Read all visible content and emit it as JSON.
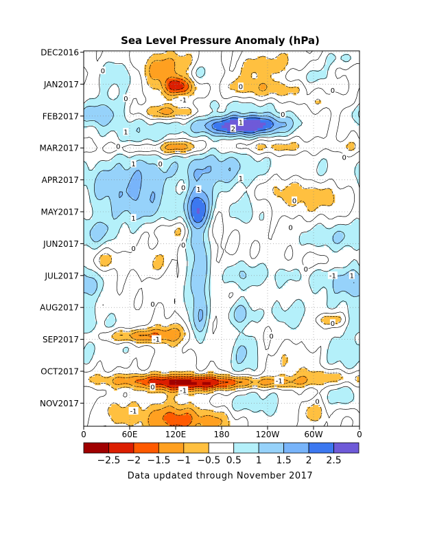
{
  "chart_data": {
    "type": "heatmap",
    "title": "Sea Level Pressure Anomaly (hPa)",
    "footer": "Data updated through November 2017",
    "y_tick_labels": [
      "DEC2016",
      "JAN2017",
      "FEB2017",
      "MAR2017",
      "APR2017",
      "MAY2017",
      "JUN2017",
      "JUL2017",
      "AUG2017",
      "SEP2017",
      "OCT2017",
      "NOV2017"
    ],
    "x_tick_labels": [
      "0",
      "60E",
      "120E",
      "180",
      "120W",
      "60W",
      "0"
    ],
    "x_range_deg_east": [
      0,
      360
    ],
    "colorbar": {
      "tick_labels": [
        "-2.5",
        "-2",
        "-1.5",
        "-1",
        "-0.5",
        "0.5",
        "1",
        "1.5",
        "2",
        "2.5"
      ],
      "levels": [
        -3,
        -2.5,
        -2,
        -1.5,
        -1,
        -0.5,
        0.5,
        1,
        1.5,
        2,
        2.5,
        3
      ],
      "colors": [
        "#a00000",
        "#dc1e00",
        "#ff5a00",
        "#ffa020",
        "#ffc040",
        "#ffffff",
        "#b4f0fa",
        "#96d2fa",
        "#78b4fa",
        "#3c78f0",
        "#6e5ad8"
      ]
    },
    "contour_labels": [
      {
        "text": "0",
        "lon": 25,
        "month": 0.58
      },
      {
        "text": "0",
        "lon": 205,
        "month": 1.08
      },
      {
        "text": "-1",
        "lon": 130,
        "month": 1.5
      },
      {
        "text": "0",
        "lon": 325,
        "month": 1.2
      },
      {
        "text": "0",
        "lon": 55,
        "month": 1.45
      },
      {
        "text": "0",
        "lon": 260,
        "month": 1.95
      },
      {
        "text": "1",
        "lon": 205,
        "month": 2.2
      },
      {
        "text": "2",
        "lon": 195,
        "month": 2.4
      },
      {
        "text": "1",
        "lon": 55,
        "month": 2.5
      },
      {
        "text": "0",
        "lon": 45,
        "month": 2.95
      },
      {
        "text": "1",
        "lon": 65,
        "month": 3.5
      },
      {
        "text": "0",
        "lon": 100,
        "month": 3.5
      },
      {
        "text": "1",
        "lon": 205,
        "month": 3.95
      },
      {
        "text": "1",
        "lon": 150,
        "month": 4.3
      },
      {
        "text": "0",
        "lon": 130,
        "month": 4.25
      },
      {
        "text": "0",
        "lon": 340,
        "month": 3.3
      },
      {
        "text": "0",
        "lon": 275,
        "month": 4.65
      },
      {
        "text": "1",
        "lon": 65,
        "month": 5.2
      },
      {
        "text": "0",
        "lon": 270,
        "month": 5.5
      },
      {
        "text": "0",
        "lon": 65,
        "month": 6.15
      },
      {
        "text": "0",
        "lon": 130,
        "month": 6.05
      },
      {
        "text": "0",
        "lon": 290,
        "month": 6.8
      },
      {
        "text": "-1",
        "lon": 325,
        "month": 7.0
      },
      {
        "text": "1",
        "lon": 350,
        "month": 7.0
      },
      {
        "text": "0",
        "lon": 90,
        "month": 7.9
      },
      {
        "text": "0",
        "lon": 325,
        "month": 8.5
      },
      {
        "text": "-1",
        "lon": 95,
        "month": 9.0
      },
      {
        "text": "0",
        "lon": 245,
        "month": 8.9
      },
      {
        "text": "-1",
        "lon": 255,
        "month": 10.3
      },
      {
        "text": "-1",
        "lon": 130,
        "month": 10.6
      },
      {
        "text": "0",
        "lon": 90,
        "month": 10.5
      },
      {
        "text": "0",
        "lon": 305,
        "month": 10.95
      },
      {
        "text": "-1",
        "lon": 65,
        "month": 11.25
      }
    ]
  }
}
